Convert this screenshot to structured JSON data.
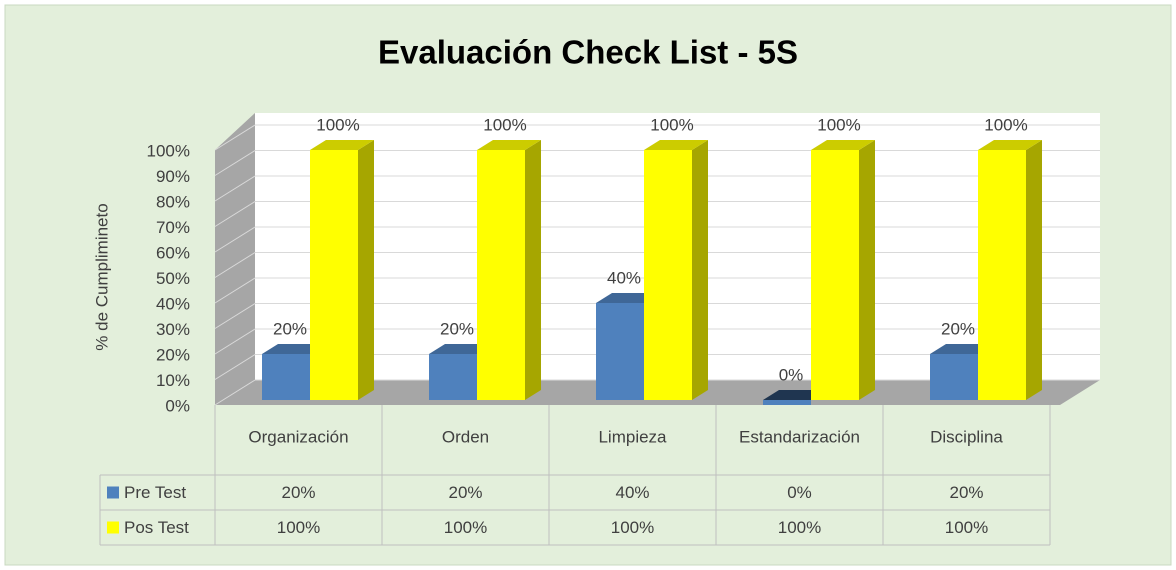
{
  "chart_data": {
    "type": "bar",
    "title": "Evaluación Check List - 5S",
    "y_label": "% de Cumplimineto",
    "categories": [
      "Organización",
      "Orden",
      "Limpieza",
      "Estandarización",
      "Disciplina"
    ],
    "series": [
      {
        "name": "Pre Test",
        "color": "#4f81bd",
        "values": [
          20,
          20,
          40,
          0,
          20
        ],
        "value_labels": [
          "20%",
          "20%",
          "40%",
          "0%",
          "20%"
        ]
      },
      {
        "name": "Pos Test",
        "color": "#ffff00",
        "values": [
          100,
          100,
          100,
          100,
          100
        ],
        "value_labels": [
          "100%",
          "100%",
          "100%",
          "100%",
          "100%"
        ]
      }
    ],
    "ylim": [
      0,
      100
    ],
    "yticks": [
      {
        "value": 0,
        "label": "0%"
      },
      {
        "value": 10,
        "label": "10%"
      },
      {
        "value": 20,
        "label": "20%"
      },
      {
        "value": 30,
        "label": "30%"
      },
      {
        "value": 40,
        "label": "40%"
      },
      {
        "value": 50,
        "label": "50%"
      },
      {
        "value": 60,
        "label": "60%"
      },
      {
        "value": 70,
        "label": "70%"
      },
      {
        "value": 80,
        "label": "80%"
      },
      {
        "value": 90,
        "label": "90%"
      },
      {
        "value": 100,
        "label": "100%"
      }
    ],
    "grid": true,
    "data_table": true
  }
}
